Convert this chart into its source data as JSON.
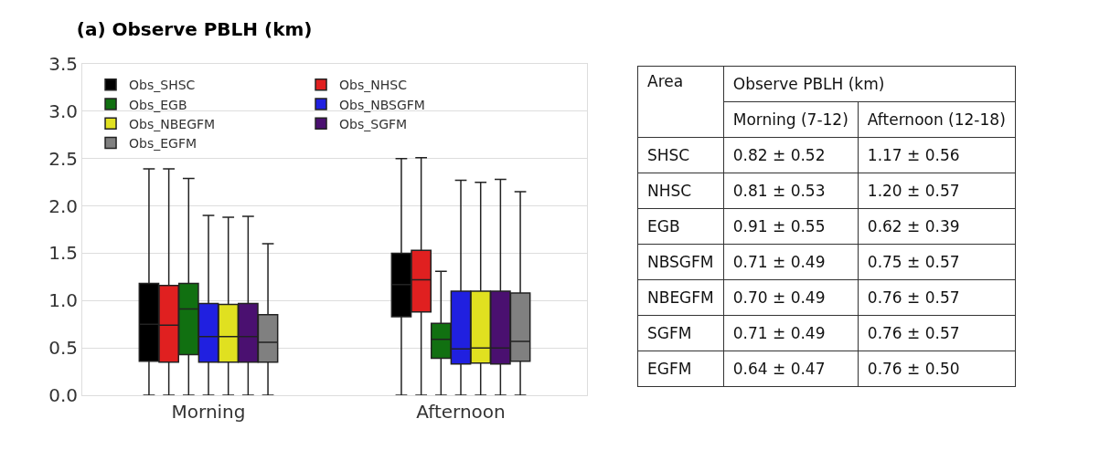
{
  "chart_data": [
    {
      "type": "box",
      "title": "(a) Observe PBLH (km)",
      "categories": [
        "Morning",
        "Afternoon"
      ],
      "ylim": [
        0,
        3.5
      ],
      "yticks": [
        {
          "value": 0,
          "label": "0.0"
        },
        0.5,
        {
          "value": 1,
          "label": "1.0"
        },
        1.5,
        {
          "value": 2,
          "label": "2.0"
        },
        2.5,
        {
          "value": 3,
          "label": "3.0"
        },
        3.5
      ],
      "grid": "y",
      "legend": "top left",
      "series": [
        {
          "name": "Obs_SHSC",
          "color": "#000000",
          "boxes": [
            {
              "low": 0,
              "q1": 0.36,
              "median": 0.75,
              "q3": 1.18,
              "high": 2.39
            },
            {
              "low": 0,
              "q1": 0.83,
              "median": 1.17,
              "q3": 1.5,
              "high": 2.5
            }
          ]
        },
        {
          "name": "Obs_NHSC",
          "color": "#e02020",
          "boxes": [
            {
              "low": 0,
              "q1": 0.35,
              "median": 0.74,
              "q3": 1.16,
              "high": 2.39
            },
            {
              "low": 0,
              "q1": 0.88,
              "median": 1.22,
              "q3": 1.53,
              "high": 2.51
            }
          ]
        },
        {
          "name": "Obs_EGB",
          "color": "#117011",
          "boxes": [
            {
              "low": 0,
              "q1": 0.43,
              "median": 0.91,
              "q3": 1.18,
              "high": 2.29
            },
            {
              "low": 0,
              "q1": 0.39,
              "median": 0.59,
              "q3": 0.76,
              "high": 1.31
            }
          ]
        },
        {
          "name": "Obs_NBSGFM",
          "color": "#2020e0",
          "boxes": [
            {
              "low": 0,
              "q1": 0.35,
              "median": 0.62,
              "q3": 0.97,
              "high": 1.9
            },
            {
              "low": 0,
              "q1": 0.33,
              "median": 0.49,
              "q3": 1.1,
              "high": 2.27
            }
          ]
        },
        {
          "name": "Obs_NBEGFM",
          "color": "#e0e020",
          "boxes": [
            {
              "low": 0,
              "q1": 0.35,
              "median": 0.62,
              "q3": 0.96,
              "high": 1.88
            },
            {
              "low": 0,
              "q1": 0.34,
              "median": 0.5,
              "q3": 1.1,
              "high": 2.25
            }
          ]
        },
        {
          "name": "Obs_SGFM",
          "color": "#4a1070",
          "boxes": [
            {
              "low": 0,
              "q1": 0.35,
              "median": 0.62,
              "q3": 0.97,
              "high": 1.89
            },
            {
              "low": 0,
              "q1": 0.33,
              "median": 0.5,
              "q3": 1.1,
              "high": 2.28
            }
          ]
        },
        {
          "name": "Obs_EGFM",
          "color": "#808080",
          "boxes": [
            {
              "low": 0,
              "q1": 0.35,
              "median": 0.56,
              "q3": 0.85,
              "high": 1.6
            },
            {
              "low": 0,
              "q1": 0.36,
              "median": 0.57,
              "q3": 1.08,
              "high": 2.15
            }
          ]
        }
      ]
    },
    {
      "type": "other",
      "title": "Observe PBLH (km)",
      "annotations": [
        "Area"
      ],
      "categories": [
        "Morning (7-12)",
        "Afternoon (12-18)"
      ],
      "y_categories": [
        "SHSC",
        "NHSC",
        "EGB",
        "NBSGFM",
        "NBEGFM",
        "SGFM",
        "EGFM"
      ],
      "cell_labels": [
        [
          "0.82 ± 0.52",
          "1.17 ± 0.56"
        ],
        [
          "0.81 ± 0.53",
          "1.20 ± 0.57"
        ],
        [
          "0.91 ± 0.55",
          "0.62 ± 0.39"
        ],
        [
          "0.71 ± 0.49",
          "0.75 ± 0.57"
        ],
        [
          "0.70 ± 0.49",
          "0.76 ± 0.57"
        ],
        [
          "0.71 ± 0.49",
          "0.76 ± 0.57"
        ],
        [
          "0.64 ± 0.47",
          "0.76 ± 0.50"
        ]
      ]
    }
  ]
}
